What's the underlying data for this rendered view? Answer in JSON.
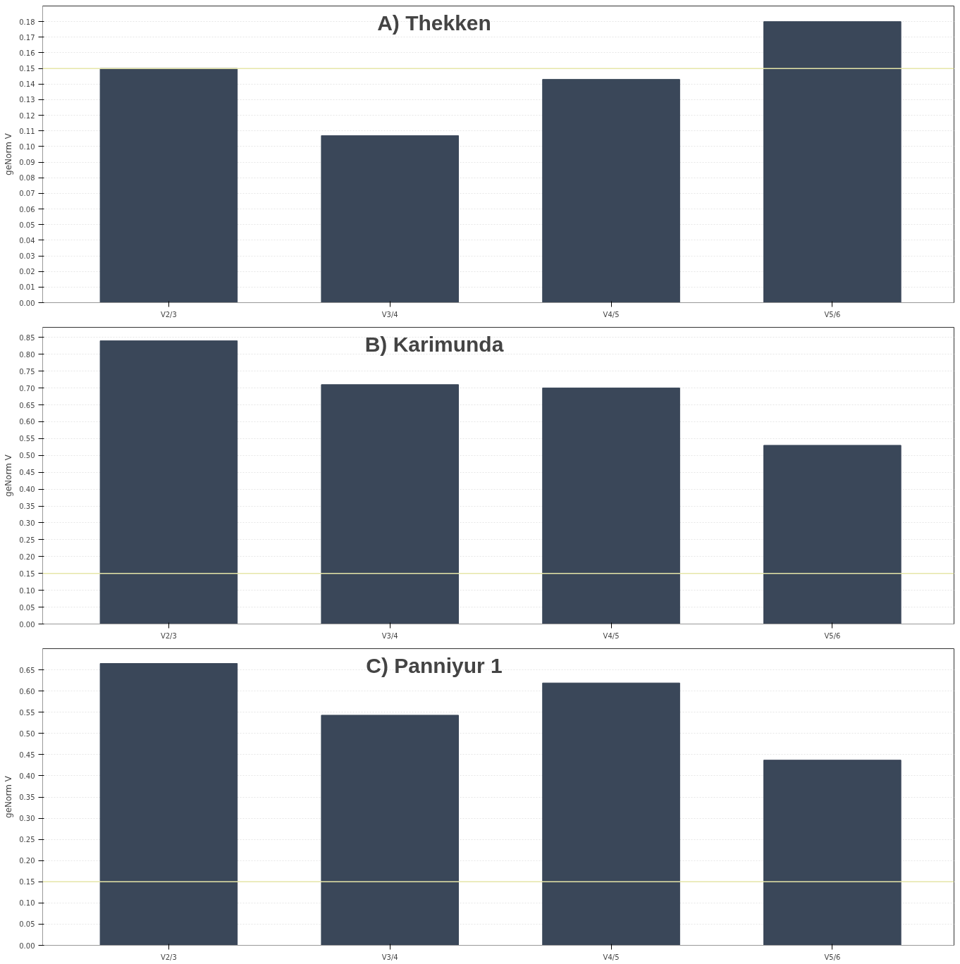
{
  "chart_data": [
    {
      "type": "bar",
      "title": "A) Thekken",
      "ylabel": "geNorm V",
      "categories": [
        "V2/3",
        "V3/4",
        "V4/5",
        "V5/6"
      ],
      "values": [
        0.15,
        0.107,
        0.143,
        0.18
      ],
      "color": "#3a4759",
      "ylim": [
        0,
        0.19
      ],
      "yticks": [
        {
          "value": 0,
          "label": "0.00"
        },
        {
          "value": 0.01,
          "label": "0.01"
        },
        {
          "value": 0.02,
          "label": "0.02"
        },
        {
          "value": 0.03,
          "label": "0.03"
        },
        {
          "value": 0.04,
          "label": "0.04"
        },
        {
          "value": 0.05,
          "label": "0.05"
        },
        {
          "value": 0.06,
          "label": "0.06"
        },
        {
          "value": 0.07,
          "label": "0.07"
        },
        {
          "value": 0.08,
          "label": "0.08"
        },
        {
          "value": 0.09,
          "label": "0.09"
        },
        {
          "value": 0.1,
          "label": "0.10"
        },
        {
          "value": 0.11,
          "label": "0.11"
        },
        {
          "value": 0.12,
          "label": "0.12"
        },
        {
          "value": 0.13,
          "label": "0.13"
        },
        {
          "value": 0.14,
          "label": "0.14"
        },
        {
          "value": 0.15,
          "label": "0.15"
        },
        {
          "value": 0.16,
          "label": "0.16"
        },
        {
          "value": 0.17,
          "label": "0.17"
        },
        {
          "value": 0.18,
          "label": "0.18"
        }
      ],
      "grid": "y",
      "ref_lines": [
        {
          "axis": "y",
          "value": 0.15,
          "color": "#e6e6a8"
        }
      ]
    },
    {
      "type": "bar",
      "title": "B) Karimunda",
      "ylabel": "geNorm V",
      "categories": [
        "V2/3",
        "V3/4",
        "V4/5",
        "V5/6"
      ],
      "values": [
        0.84,
        0.71,
        0.7,
        0.53
      ],
      "color": "#3a4759",
      "ylim": [
        0,
        0.88
      ],
      "yticks": [
        {
          "value": 0,
          "label": "0.00"
        },
        {
          "value": 0.05,
          "label": "0.05"
        },
        {
          "value": 0.1,
          "label": "0.10"
        },
        {
          "value": 0.15,
          "label": "0.15"
        },
        {
          "value": 0.2,
          "label": "0.20"
        },
        {
          "value": 0.25,
          "label": "0.25"
        },
        {
          "value": 0.3,
          "label": "0.30"
        },
        {
          "value": 0.35,
          "label": "0.35"
        },
        {
          "value": 0.4,
          "label": "0.40"
        },
        {
          "value": 0.45,
          "label": "0.45"
        },
        {
          "value": 0.5,
          "label": "0.50"
        },
        {
          "value": 0.55,
          "label": "0.55"
        },
        {
          "value": 0.6,
          "label": "0.60"
        },
        {
          "value": 0.65,
          "label": "0.65"
        },
        {
          "value": 0.7,
          "label": "0.70"
        },
        {
          "value": 0.75,
          "label": "0.75"
        },
        {
          "value": 0.8,
          "label": "0.80"
        },
        {
          "value": 0.85,
          "label": "0.85"
        }
      ],
      "grid": "y",
      "ref_lines": [
        {
          "axis": "y",
          "value": 0.15,
          "color": "#e6e6a8"
        }
      ]
    },
    {
      "type": "bar",
      "title": "C) Panniyur 1",
      "ylabel": "geNorm V",
      "categories": [
        "V2/3",
        "V3/4",
        "V4/5",
        "V5/6"
      ],
      "values": [
        0.665,
        0.543,
        0.619,
        0.437
      ],
      "color": "#3a4759",
      "ylim": [
        0,
        0.7
      ],
      "yticks": [
        {
          "value": 0,
          "label": "0.00"
        },
        {
          "value": 0.05,
          "label": "0.05"
        },
        {
          "value": 0.1,
          "label": "0.10"
        },
        {
          "value": 0.15,
          "label": "0.15"
        },
        {
          "value": 0.2,
          "label": "0.20"
        },
        {
          "value": 0.25,
          "label": "0.25"
        },
        {
          "value": 0.3,
          "label": "0.30"
        },
        {
          "value": 0.35,
          "label": "0.35"
        },
        {
          "value": 0.4,
          "label": "0.40"
        },
        {
          "value": 0.45,
          "label": "0.45"
        },
        {
          "value": 0.5,
          "label": "0.50"
        },
        {
          "value": 0.55,
          "label": "0.55"
        },
        {
          "value": 0.6,
          "label": "0.60"
        },
        {
          "value": 0.65,
          "label": "0.65"
        }
      ],
      "grid": "y",
      "ref_lines": [
        {
          "axis": "y",
          "value": 0.15,
          "color": "#e6e6a8"
        }
      ]
    }
  ]
}
